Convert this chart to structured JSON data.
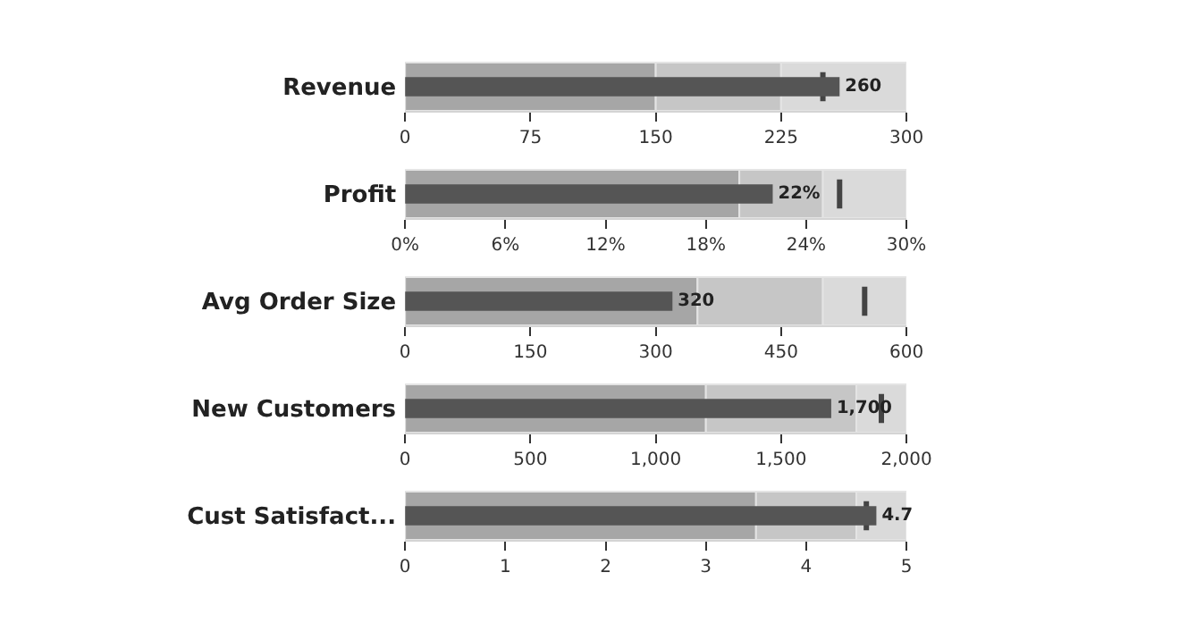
{
  "chart_data": [
    {
      "type": "bar",
      "orientation": "horizontal",
      "categories": [
        "Revenue"
      ],
      "values": [
        260
      ],
      "value_labels": [
        "260"
      ],
      "color": "#555555",
      "xlim": [
        0,
        300
      ],
      "xticks": [
        0,
        75,
        150,
        225,
        300
      ],
      "bands": [
        {
          "axis": "x",
          "from": 0,
          "to": 150,
          "color": "#a6a6a6"
        },
        {
          "axis": "x",
          "from": 150,
          "to": 225,
          "color": "#c6c6c6"
        },
        {
          "axis": "x",
          "from": 225,
          "to": 300,
          "color": "#dadada"
        }
      ],
      "ref_lines": [
        {
          "axis": "x",
          "value": 250,
          "color": "#444444"
        }
      ]
    },
    {
      "type": "bar",
      "orientation": "horizontal",
      "categories": [
        "Profit"
      ],
      "values": [
        22
      ],
      "value_labels": [
        "22%"
      ],
      "color": "#555555",
      "xlim": [
        0,
        30
      ],
      "xticks": [
        {
          "value": 0,
          "label": "0%"
        },
        {
          "value": 6,
          "label": "6%"
        },
        {
          "value": 12,
          "label": "12%"
        },
        {
          "value": 18,
          "label": "18%"
        },
        {
          "value": 24,
          "label": "24%"
        },
        {
          "value": 30,
          "label": "30%"
        }
      ],
      "bands": [
        {
          "axis": "x",
          "from": 0,
          "to": 20,
          "color": "#a6a6a6"
        },
        {
          "axis": "x",
          "from": 20,
          "to": 25,
          "color": "#c6c6c6"
        },
        {
          "axis": "x",
          "from": 25,
          "to": 30,
          "color": "#dadada"
        }
      ],
      "ref_lines": [
        {
          "axis": "x",
          "value": 26,
          "color": "#444444"
        }
      ]
    },
    {
      "type": "bar",
      "orientation": "horizontal",
      "categories": [
        "Avg Order Size"
      ],
      "values": [
        320
      ],
      "value_labels": [
        "320"
      ],
      "color": "#555555",
      "xlim": [
        0,
        600
      ],
      "xticks": [
        0,
        150,
        300,
        450,
        600
      ],
      "bands": [
        {
          "axis": "x",
          "from": 0,
          "to": 350,
          "color": "#a6a6a6"
        },
        {
          "axis": "x",
          "from": 350,
          "to": 500,
          "color": "#c6c6c6"
        },
        {
          "axis": "x",
          "from": 500,
          "to": 600,
          "color": "#dadada"
        }
      ],
      "ref_lines": [
        {
          "axis": "x",
          "value": 550,
          "color": "#444444"
        }
      ]
    },
    {
      "type": "bar",
      "orientation": "horizontal",
      "categories": [
        "New Customers"
      ],
      "values": [
        1700
      ],
      "value_labels": [
        "1,700"
      ],
      "color": "#555555",
      "xlim": [
        0,
        2000
      ],
      "xticks": [
        0,
        500,
        {
          "value": 1000,
          "label": "1,000"
        },
        {
          "value": 1500,
          "label": "1,500"
        },
        {
          "value": 2000,
          "label": "2,000"
        }
      ],
      "bands": [
        {
          "axis": "x",
          "from": 0,
          "to": 1200,
          "color": "#a6a6a6"
        },
        {
          "axis": "x",
          "from": 1200,
          "to": 1800,
          "color": "#c6c6c6"
        },
        {
          "axis": "x",
          "from": 1800,
          "to": 2000,
          "color": "#dadada"
        }
      ],
      "ref_lines": [
        {
          "axis": "x",
          "value": 1900,
          "color": "#444444"
        }
      ]
    },
    {
      "type": "bar",
      "orientation": "horizontal",
      "categories": [
        "Cust Satisfact..."
      ],
      "values": [
        4.7
      ],
      "value_labels": [
        "4.7"
      ],
      "color": "#555555",
      "xlim": [
        0,
        5
      ],
      "xticks": [
        0,
        1,
        2,
        3,
        4,
        5
      ],
      "bands": [
        {
          "axis": "x",
          "from": 0,
          "to": 3.5,
          "color": "#a6a6a6"
        },
        {
          "axis": "x",
          "from": 3.5,
          "to": 4.5,
          "color": "#c6c6c6"
        },
        {
          "axis": "x",
          "from": 4.5,
          "to": 5,
          "color": "#dadada"
        }
      ],
      "ref_lines": [
        {
          "axis": "x",
          "value": 4.6,
          "color": "#444444"
        }
      ]
    }
  ]
}
